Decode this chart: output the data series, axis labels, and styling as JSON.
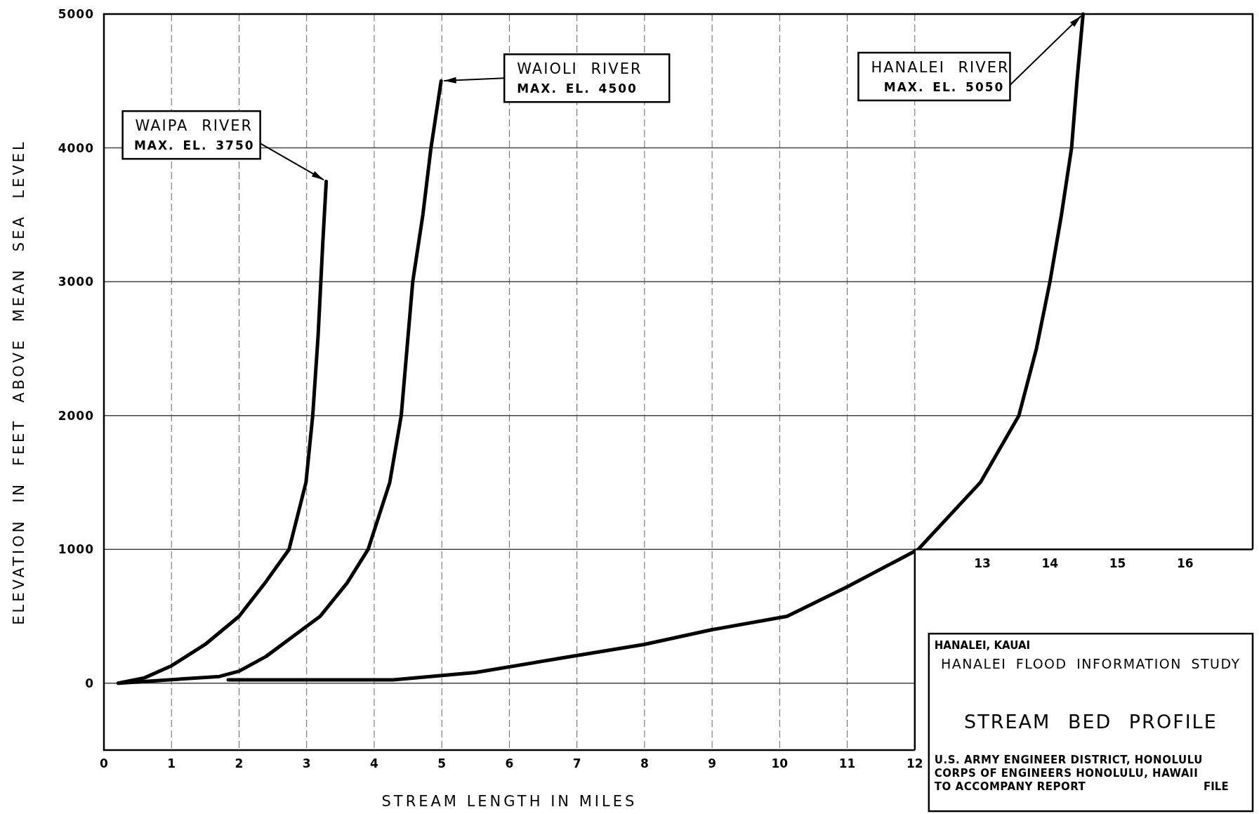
{
  "chart_data": {
    "type": "line",
    "title": "STREAM BED PROFILE",
    "subtitle": "HANALEI FLOOD INFORMATION STUDY",
    "xlabel": "STREAM LENGTH IN MILES",
    "ylabel": "ELEVATION IN FEET ABOVE MEAN SEA LEVEL",
    "xlim": [
      0,
      17
    ],
    "ylim": [
      -500,
      5000
    ],
    "xticks": [
      0,
      1,
      2,
      3,
      4,
      5,
      6,
      7,
      8,
      9,
      10,
      11,
      12
    ],
    "x2lim": [
      0,
      17
    ],
    "x2ticks": [
      13,
      14,
      15,
      16
    ],
    "yticks": [
      0,
      1000,
      2000,
      3000,
      4000,
      5000
    ],
    "grid": true,
    "legend": false,
    "marker": "none",
    "line_style": "solid",
    "series": [
      {
        "name": "WAIPA RIVER",
        "color": "#000000",
        "x": [
          0.21,
          0.6,
          1.0,
          1.5,
          2.0,
          2.4,
          2.74,
          2.99,
          3.09,
          3.17,
          3.24,
          3.29
        ],
        "values": [
          0,
          40,
          130,
          290,
          500,
          760,
          1000,
          1500,
          2000,
          2600,
          3300,
          3750
        ]
      },
      {
        "name": "WAIOLI RIVER",
        "color": "#000000",
        "x": [
          0.22,
          1.71,
          2.0,
          2.4,
          2.8,
          3.2,
          3.6,
          3.91,
          4.23,
          4.4,
          4.57,
          4.72,
          4.84,
          4.99
        ],
        "values": [
          0,
          50,
          90,
          200,
          350,
          500,
          750,
          1000,
          1500,
          2000,
          3000,
          3500,
          4000,
          4500
        ]
      },
      {
        "name": "HANALEI RIVER",
        "color": "#000000",
        "x": [
          1.84,
          4.28,
          5.5,
          6.8,
          8.0,
          9.0,
          10.11,
          11.0,
          12.05,
          12.97,
          13.54,
          13.8,
          14.0,
          14.17,
          14.32,
          14.4,
          14.49
        ],
        "values": [
          25,
          25,
          80,
          190,
          290,
          400,
          500,
          720,
          1000,
          1500,
          2000,
          2500,
          3000,
          3500,
          4000,
          4500,
          5000
        ]
      }
    ],
    "annotations": [
      {
        "text": "MAX. EL. 3750",
        "x": 3.29,
        "y": 3750
      },
      {
        "text": "MAX. EL. 4500",
        "x": 4.99,
        "y": 4500
      },
      {
        "text": "MAX. EL. 5050",
        "x": 14.49,
        "y": 5000
      },
      "HANALEI, KAUAI",
      "U.S. ARMY ENGINEER DISTRICT, HONOLULU",
      "CORPS OF ENGINEERS HONOLULU, HAWAII",
      "TO ACCOMPANY REPORT",
      "FILE"
    ]
  }
}
